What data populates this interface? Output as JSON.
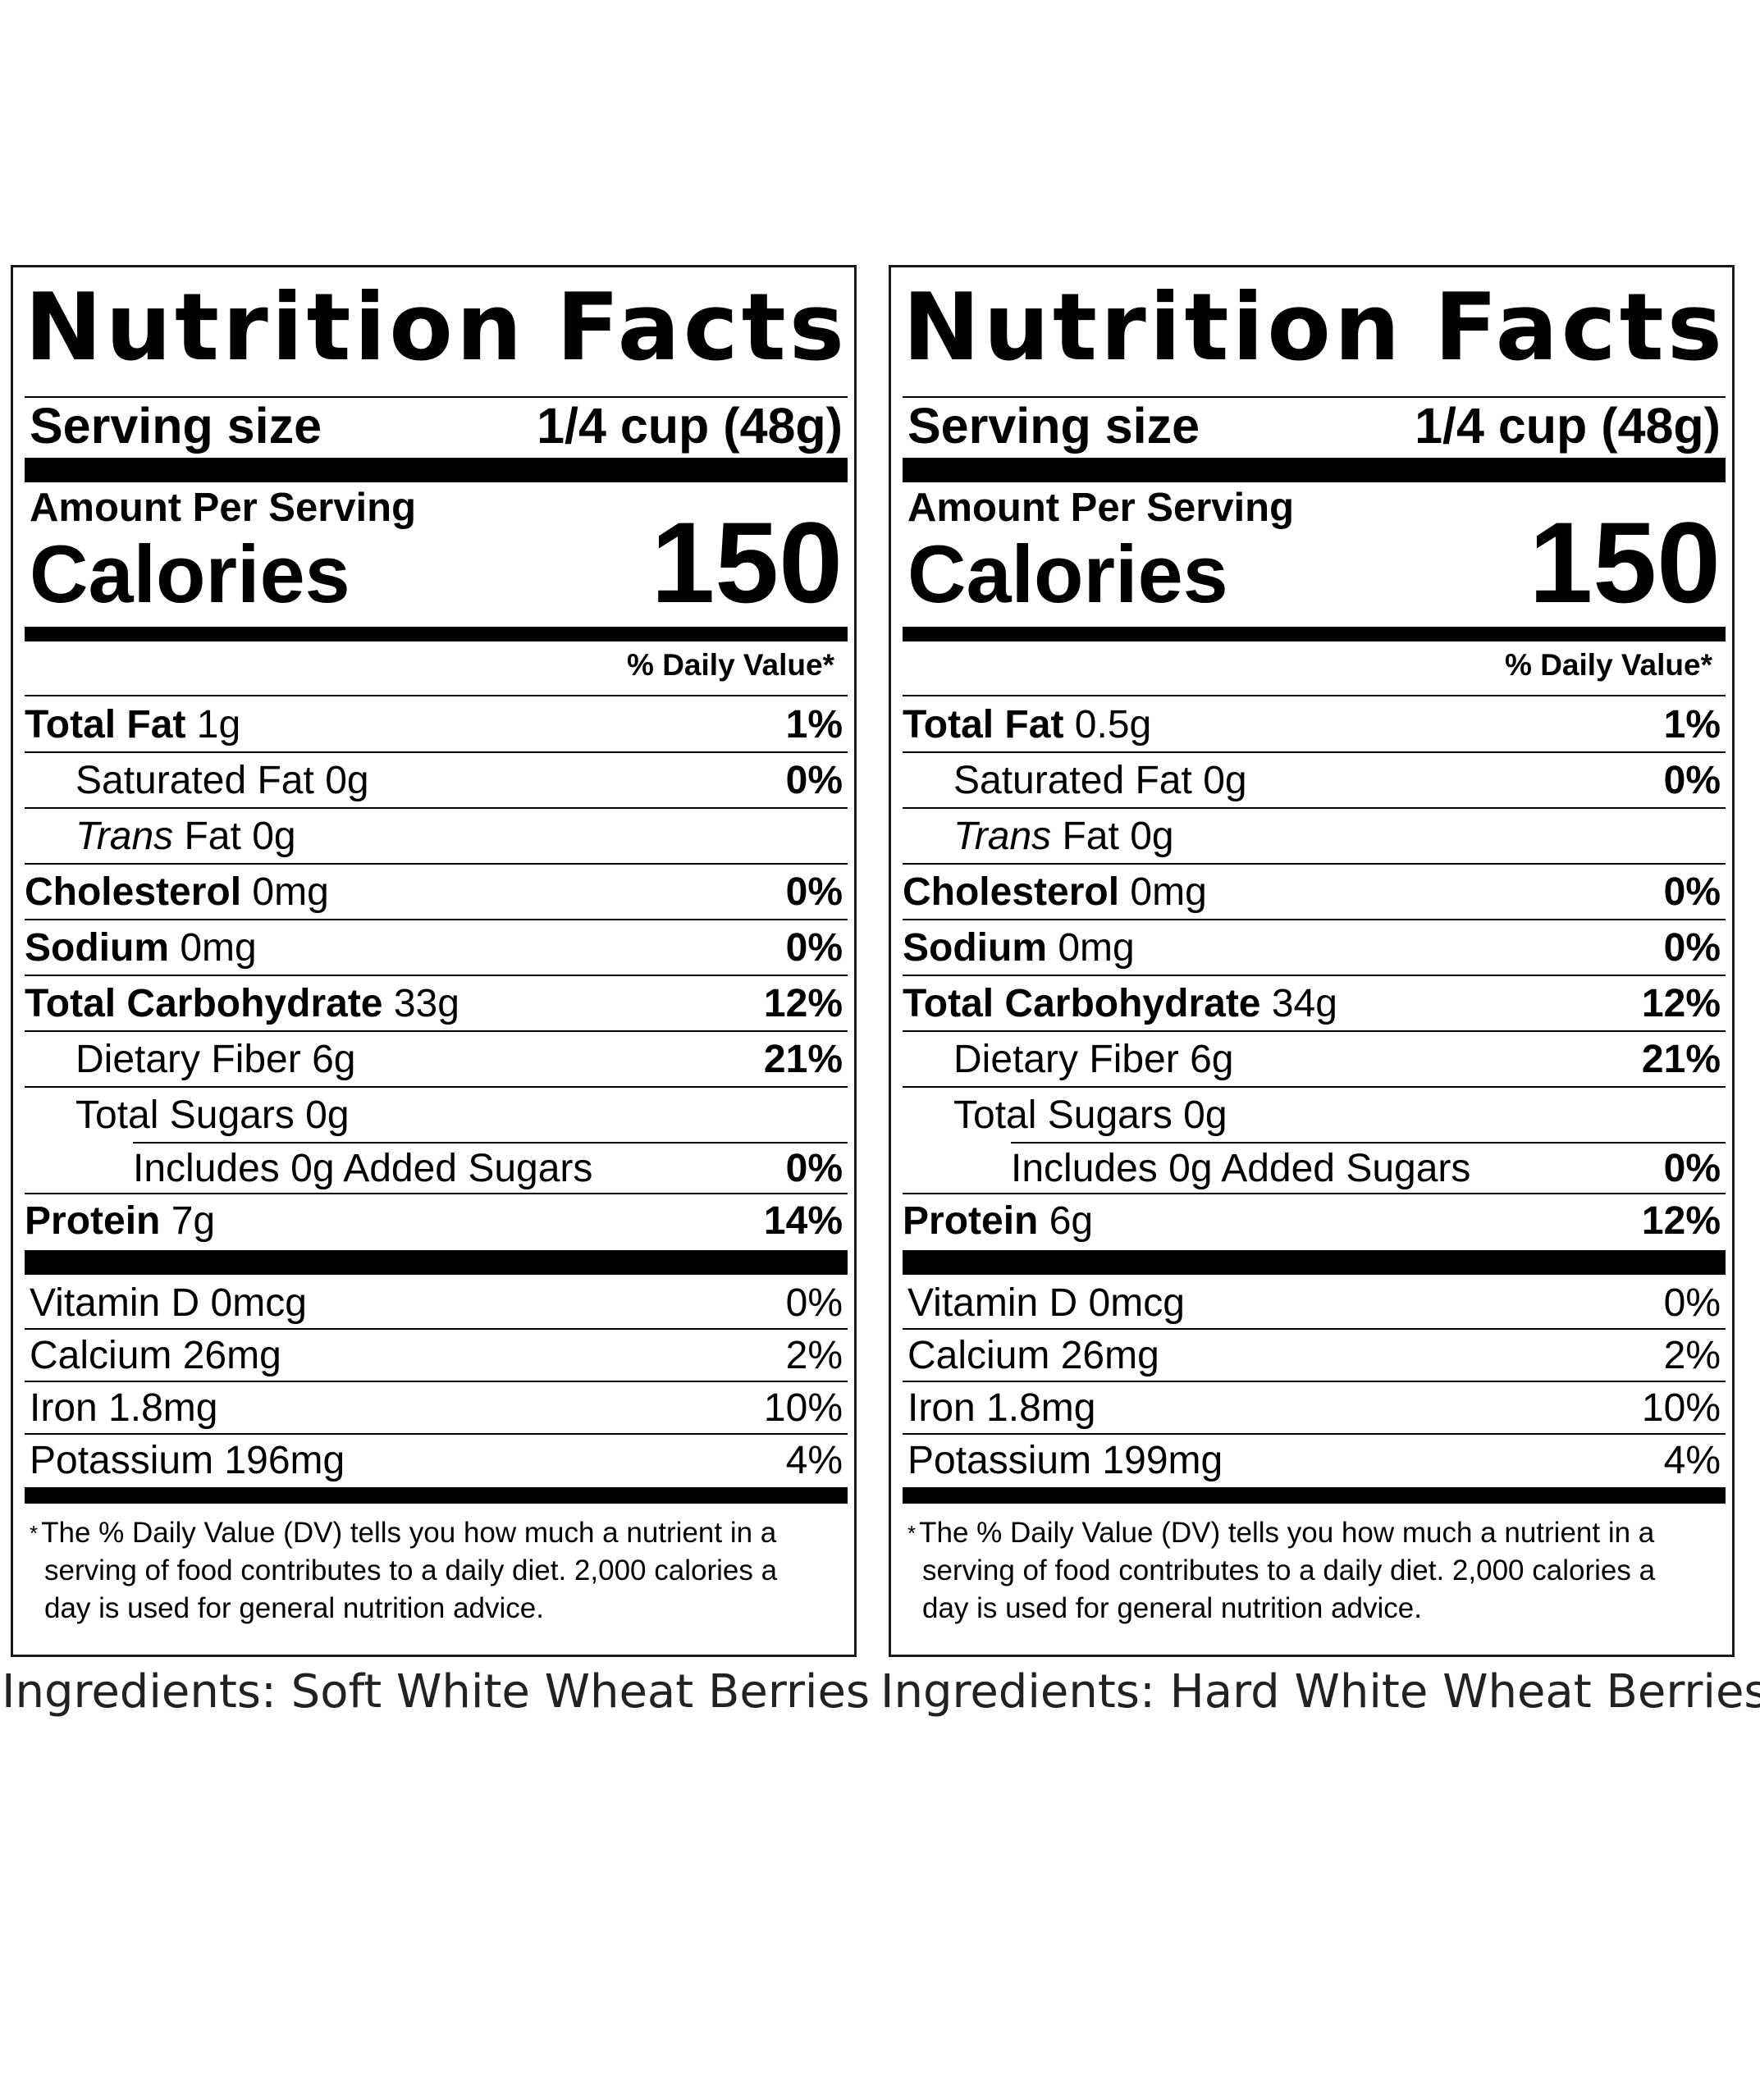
{
  "panels": [
    {
      "title_word1": "Nutrition",
      "title_word2": "Facts",
      "serving_label": "Serving size",
      "serving_value": "1/4 cup (48g)",
      "amount_per_serving": "Amount Per Serving",
      "calories_label": "Calories",
      "calories_value": "150",
      "dv_header": "% Daily Value*",
      "nutrients": [
        {
          "name": "Total Fat",
          "amount": "1g",
          "dv": "1%"
        },
        {
          "name": "Saturated Fat",
          "amount": "0g",
          "dv": "0%"
        },
        {
          "name_italic": "Trans",
          "name": "Fat",
          "amount": "0g",
          "dv": ""
        },
        {
          "name": "Cholesterol",
          "amount": "0mg",
          "dv": "0%"
        },
        {
          "name": "Sodium",
          "amount": "0mg",
          "dv": "0%"
        },
        {
          "name": "Total Carbohydrate",
          "amount": "33g",
          "dv": "12%"
        },
        {
          "name": "Dietary Fiber",
          "amount": "6g",
          "dv": "21%"
        },
        {
          "name": "Total Sugars",
          "amount": "0g",
          "dv": ""
        },
        {
          "text": "Includes 0g Added Sugars",
          "dv": "0%"
        },
        {
          "name": "Protein",
          "amount": "7g",
          "dv": "14%"
        }
      ],
      "vitamins": [
        {
          "text": "Vitamin D 0mcg",
          "dv": "0%"
        },
        {
          "text": "Calcium 26mg",
          "dv": "2%"
        },
        {
          "text": "Iron 1.8mg",
          "dv": "10%"
        },
        {
          "text": "Potassium 196mg",
          "dv": "4%"
        }
      ],
      "footnote_star": "*",
      "footnote_line1": "The % Daily Value (DV) tells you how much a nutrient in a",
      "footnote_line2": "serving of food contributes to a daily diet. 2,000 calories a",
      "footnote_line3": "day is used for general nutrition advice.",
      "ingredients": "Ingredients: Soft White Wheat Berries"
    },
    {
      "title_word1": "Nutrition",
      "title_word2": "Facts",
      "serving_label": "Serving size",
      "serving_value": "1/4 cup (48g)",
      "amount_per_serving": "Amount Per Serving",
      "calories_label": "Calories",
      "calories_value": "150",
      "dv_header": "% Daily Value*",
      "nutrients": [
        {
          "name": "Total Fat",
          "amount": "0.5g",
          "dv": "1%"
        },
        {
          "name": "Saturated Fat",
          "amount": "0g",
          "dv": "0%"
        },
        {
          "name_italic": "Trans",
          "name": "Fat",
          "amount": "0g",
          "dv": ""
        },
        {
          "name": "Cholesterol",
          "amount": "0mg",
          "dv": "0%"
        },
        {
          "name": "Sodium",
          "amount": "0mg",
          "dv": "0%"
        },
        {
          "name": "Total Carbohydrate",
          "amount": "34g",
          "dv": "12%"
        },
        {
          "name": "Dietary Fiber",
          "amount": "6g",
          "dv": "21%"
        },
        {
          "name": "Total Sugars",
          "amount": "0g",
          "dv": ""
        },
        {
          "text": "Includes 0g Added Sugars",
          "dv": "0%"
        },
        {
          "name": "Protein",
          "amount": "6g",
          "dv": "12%"
        }
      ],
      "vitamins": [
        {
          "text": "Vitamin D 0mcg",
          "dv": "0%"
        },
        {
          "text": "Calcium 26mg",
          "dv": "2%"
        },
        {
          "text": "Iron 1.8mg",
          "dv": "10%"
        },
        {
          "text": "Potassium 199mg",
          "dv": "4%"
        }
      ],
      "footnote_star": "*",
      "footnote_line1": "The % Daily Value (DV) tells you how much a nutrient in a",
      "footnote_line2": "serving of food contributes to a daily diet. 2,000 calories a",
      "footnote_line3": "day is used for general nutrition advice.",
      "ingredients": "Ingredients: Hard White Wheat Berries"
    }
  ]
}
